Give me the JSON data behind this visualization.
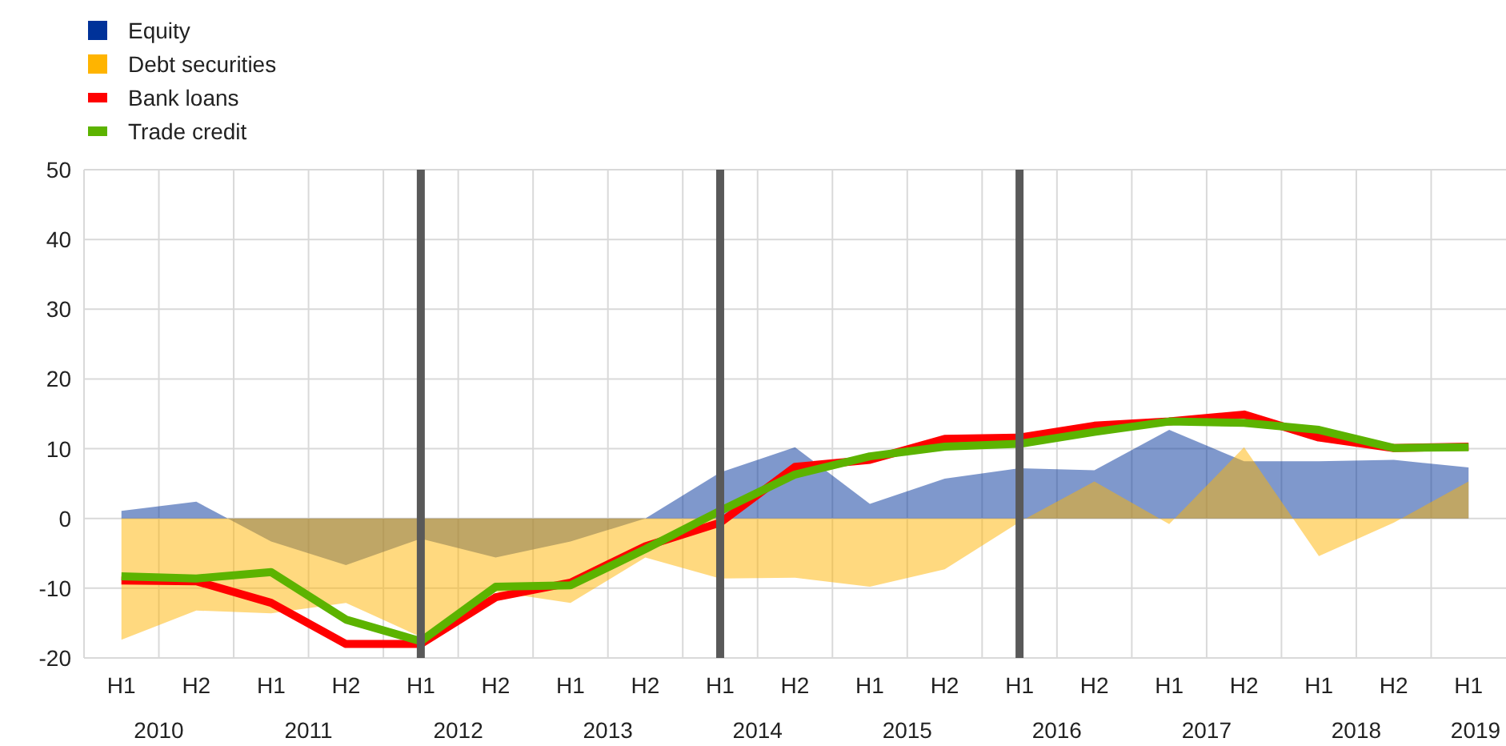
{
  "chart_data": {
    "type": "area",
    "categories": [
      "H1",
      "H2",
      "H1",
      "H2",
      "H1",
      "H2",
      "H1",
      "H2",
      "H1",
      "H2",
      "H1",
      "H2",
      "H1",
      "H2",
      "H1",
      "H2",
      "H1",
      "H2",
      "H1"
    ],
    "ylim": [
      -20,
      50
    ],
    "yticks": [
      -20,
      -10,
      0,
      10,
      20,
      30,
      40,
      50
    ],
    "series": [
      {
        "name": "Equity",
        "color": "#003299",
        "values": [
          1.1,
          2.4,
          -3.3,
          -6.7,
          -2.9,
          -5.6,
          -3.3,
          0,
          6.6,
          10.2,
          2.1,
          5.7,
          7.2,
          6.9,
          12.7,
          8.2,
          8.2,
          8.4,
          7.3
        ]
      },
      {
        "name": "Debt securities",
        "color": "#ffb400",
        "values": [
          -17.4,
          -13.2,
          -13.6,
          -12.1,
          -17,
          -10.5,
          -12.1,
          -5.6,
          -8.6,
          -8.5,
          -9.8,
          -7.3,
          -0.5,
          5.3,
          -0.8,
          10.2,
          -5.4,
          -0.6,
          5.3
        ]
      },
      {
        "name": "Bank loans",
        "type": "line",
        "color": "#ff0000",
        "values": [
          -8.9,
          -9,
          -12.1,
          -18,
          -18,
          -11.3,
          -9.2,
          -4,
          -0.6,
          7.4,
          8.4,
          11.4,
          11.6,
          13.3,
          13.9,
          14.9,
          11.6,
          10.1,
          10.3
        ]
      },
      {
        "name": "Trade credit",
        "type": "line",
        "color": "#5cb300",
        "values": [
          -8.3,
          -8.6,
          -7.7,
          -14.5,
          -17.6,
          -9.8,
          -9.6,
          -4.4,
          1.1,
          6.3,
          8.9,
          10.3,
          10.7,
          12.4,
          13.9,
          13.7,
          12.7,
          10.1,
          10.2
        ]
      }
    ],
    "annotations": [
      "2010",
      "2011",
      "2012",
      "2013",
      "2014",
      "2015",
      "2016",
      "2017",
      "2018",
      "2019"
    ],
    "grid": true,
    "legend": "top left"
  }
}
